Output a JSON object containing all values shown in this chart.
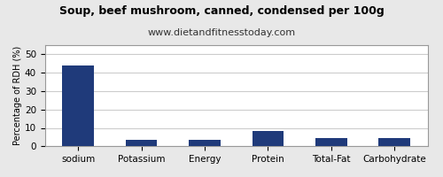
{
  "title": "Soup, beef mushroom, canned, condensed per 100g",
  "subtitle": "www.dietandfitnesstoday.com",
  "ylabel": "Percentage of RDH (%)",
  "categories": [
    "sodium",
    "Potassium",
    "Energy",
    "Protein",
    "Total-Fat",
    "Carbohydrate"
  ],
  "values": [
    44.0,
    3.5,
    3.5,
    8.5,
    4.5,
    4.5
  ],
  "bar_color": "#1F3A7A",
  "ylim": [
    0,
    55
  ],
  "yticks": [
    0,
    10,
    20,
    30,
    40,
    50
  ],
  "background_color": "#e8e8e8",
  "plot_bg_color": "#ffffff",
  "title_fontsize": 9,
  "subtitle_fontsize": 8,
  "ylabel_fontsize": 7,
  "tick_fontsize": 7.5,
  "border_color": "#999999"
}
